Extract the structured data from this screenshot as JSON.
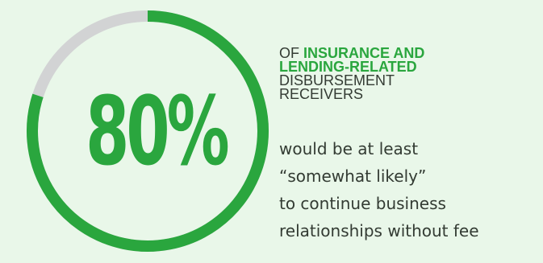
{
  "colors": {
    "background": "#e9f7e9",
    "accent": "#2aa63e",
    "track": "#d2d3d4",
    "text": "#333b33"
  },
  "chart_data": {
    "type": "pie",
    "value": 80,
    "max": 100,
    "display_value": "80%",
    "headline": {
      "prefix": "OF",
      "bold_line_1": "INSURANCE AND",
      "bold_line_2": "LENDING-RELATED",
      "line_3": "DISBURSEMENT",
      "line_4": "RECEIVERS"
    },
    "body_lines": [
      "would be at least",
      "“somewhat likely”",
      "to continue business",
      "relationships without fee"
    ]
  }
}
